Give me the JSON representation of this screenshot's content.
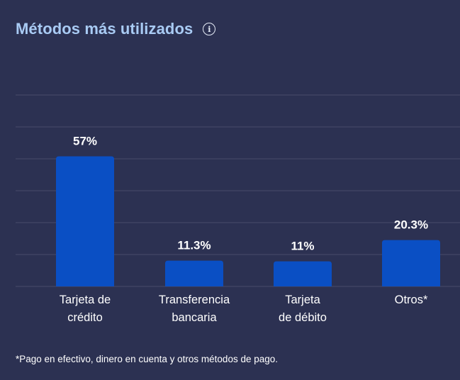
{
  "header": {
    "title": "Métodos más utilizados",
    "info_icon": "info-icon"
  },
  "chart_data": {
    "type": "bar",
    "categories": [
      [
        "Tarjeta de",
        "crédito"
      ],
      [
        "Transferencia",
        "bancaria"
      ],
      [
        "Tarjeta",
        "de débito"
      ],
      [
        "Otros*"
      ]
    ],
    "values": [
      57,
      11.3,
      11,
      20.3
    ],
    "value_labels": [
      "57%",
      "11.3%",
      "11%",
      "20.3%"
    ],
    "title": "Métodos más utilizados",
    "xlabel": "",
    "ylabel": "",
    "ylim": [
      0,
      80
    ],
    "grid": true,
    "bar_color": "#0a4fc4",
    "grid_color": "#474c6b"
  },
  "footnote": "*Pago en efectivo, dinero en cuenta y otros métodos de pago."
}
